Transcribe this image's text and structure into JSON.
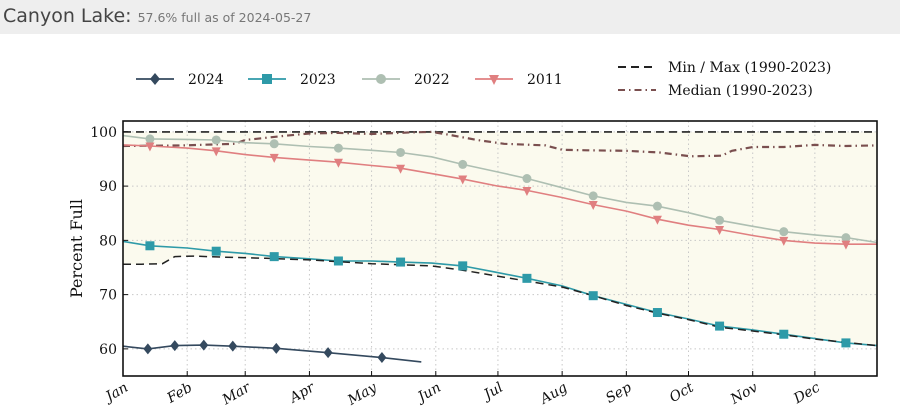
{
  "header": {
    "title": "Canyon Lake:",
    "status": "57.6% full as of 2024-05-27"
  },
  "chart_data": {
    "type": "line",
    "ylabel": "Percent Full",
    "ylim": [
      55,
      102
    ],
    "yticks": [
      60,
      70,
      80,
      90,
      100
    ],
    "x_unit": "day-of-year",
    "xlim": [
      1,
      365
    ],
    "month_ticks": [
      {
        "label": "Jan",
        "day": 1
      },
      {
        "label": "Feb",
        "day": 32
      },
      {
        "label": "Mar",
        "day": 60
      },
      {
        "label": "Apr",
        "day": 91
      },
      {
        "label": "May",
        "day": 121
      },
      {
        "label": "Jun",
        "day": 152
      },
      {
        "label": "Jul",
        "day": 182
      },
      {
        "label": "Aug",
        "day": 213
      },
      {
        "label": "Sep",
        "day": 244
      },
      {
        "label": "Oct",
        "day": 274
      },
      {
        "label": "Nov",
        "day": 305
      },
      {
        "label": "Dec",
        "day": 335
      }
    ],
    "grid": true,
    "legend": {
      "placement": "top",
      "entries": [
        {
          "label": "2024",
          "series": "2024"
        },
        {
          "label": "2023",
          "series": "2023"
        },
        {
          "label": "2022",
          "series": "2022"
        },
        {
          "label": "2011",
          "series": "2011"
        },
        {
          "label": "Min / Max (1990-2023)",
          "series": "minmax"
        },
        {
          "label": "Median (1990-2023)",
          "series": "median"
        }
      ]
    },
    "colors": {
      "2024": "#34495e",
      "2023": "#2e9aa8",
      "2022": "#aebfb2",
      "2011": "#e07f80",
      "minmax": "#222222",
      "median": "#7a4f4f",
      "band": "#fbfaee"
    },
    "series": [
      {
        "name": "2024",
        "marker": "diamond",
        "x": [
          1,
          13,
          26,
          40,
          54,
          75,
          100,
          126,
          145
        ],
        "y": [
          60.5,
          60.0,
          60.6,
          60.7,
          60.5,
          60.1,
          59.3,
          58.4,
          57.6
        ]
      },
      {
        "name": "2023",
        "marker": "square",
        "x": [
          1,
          14,
          32,
          46,
          60,
          74,
          91,
          105,
          121,
          135,
          150,
          165,
          180,
          196,
          213,
          228,
          244,
          259,
          274,
          289,
          305,
          320,
          335,
          350,
          365
        ],
        "y": [
          79.8,
          79.0,
          78.6,
          78.0,
          77.6,
          77.0,
          76.6,
          76.2,
          76.2,
          76.0,
          75.8,
          75.3,
          74.2,
          73.0,
          71.6,
          69.8,
          68.2,
          66.7,
          65.5,
          64.2,
          63.5,
          62.7,
          61.9,
          61.1,
          60.6
        ]
      },
      {
        "name": "2022",
        "marker": "circle",
        "x": [
          1,
          14,
          32,
          46,
          60,
          74,
          91,
          105,
          121,
          135,
          150,
          165,
          182,
          196,
          213,
          228,
          244,
          259,
          274,
          289,
          305,
          320,
          335,
          350,
          365
        ],
        "y": [
          99.3,
          98.7,
          98.6,
          98.5,
          98.0,
          97.8,
          97.3,
          97.0,
          96.6,
          96.2,
          95.4,
          94.0,
          92.6,
          91.4,
          89.7,
          88.2,
          87.0,
          86.3,
          85.1,
          83.7,
          82.6,
          81.6,
          81.0,
          80.5,
          79.6
        ]
      },
      {
        "name": "2011",
        "marker": "triangle-down",
        "x": [
          1,
          14,
          32,
          46,
          60,
          74,
          91,
          105,
          121,
          135,
          150,
          165,
          182,
          196,
          213,
          228,
          244,
          259,
          274,
          289,
          305,
          320,
          335,
          350,
          365
        ],
        "y": [
          97.6,
          97.4,
          97.0,
          96.5,
          95.8,
          95.3,
          94.8,
          94.4,
          93.8,
          93.3,
          92.3,
          91.3,
          90.0,
          89.2,
          87.9,
          86.6,
          85.4,
          83.9,
          82.8,
          82.0,
          80.9,
          80.0,
          79.5,
          79.3,
          79.3
        ]
      },
      {
        "name": "max",
        "style": "dashed",
        "x": [
          1,
          365
        ],
        "y": [
          100,
          100
        ]
      },
      {
        "name": "min",
        "style": "dashed",
        "x": [
          1,
          10,
          20,
          26,
          35,
          50,
          70,
          91,
          121,
          150,
          165,
          182,
          196,
          213,
          228,
          244,
          259,
          274,
          289,
          305,
          320,
          335,
          350,
          365
        ],
        "y": [
          75.6,
          75.6,
          75.7,
          77.0,
          77.1,
          76.9,
          76.7,
          76.4,
          75.7,
          75.3,
          74.5,
          73.4,
          72.5,
          71.4,
          69.8,
          68.0,
          66.6,
          65.4,
          64.0,
          63.3,
          62.6,
          61.8,
          61.2,
          60.6
        ]
      },
      {
        "name": "median",
        "style": "dashdot",
        "x": [
          1,
          30,
          55,
          60,
          80,
          91,
          105,
          121,
          140,
          150,
          158,
          172,
          185,
          205,
          213,
          225,
          244,
          260,
          275,
          290,
          295,
          305,
          320,
          335,
          350,
          365
        ],
        "y": [
          97.4,
          97.5,
          97.8,
          98.5,
          99.3,
          99.7,
          99.8,
          99.6,
          99.9,
          100.0,
          99.5,
          98.5,
          97.8,
          97.5,
          96.7,
          96.6,
          96.5,
          96.2,
          95.5,
          95.6,
          96.5,
          97.2,
          97.2,
          97.6,
          97.4,
          97.5
        ]
      }
    ]
  }
}
